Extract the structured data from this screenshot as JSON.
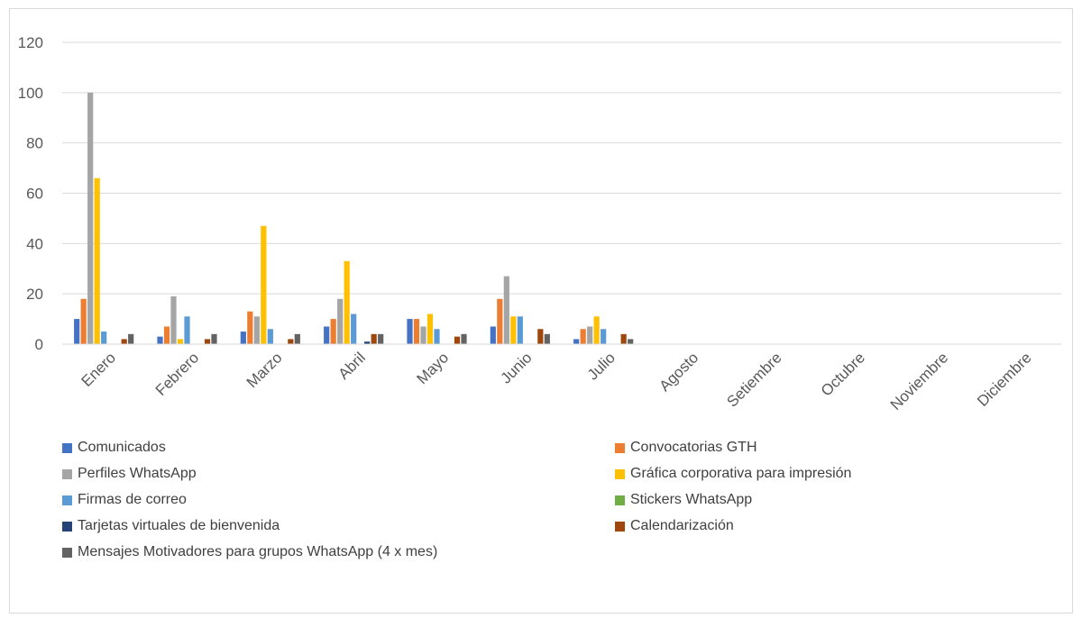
{
  "chart_data": {
    "type": "bar",
    "title": "",
    "xlabel": "",
    "ylabel": "",
    "ylim": [
      0,
      120
    ],
    "yticks": [
      0,
      20,
      40,
      60,
      80,
      100,
      120
    ],
    "grid": true,
    "legend_position": "bottom",
    "categories": [
      "Enero",
      "Febrero",
      "Marzo",
      "Abril",
      "Mayo",
      "Junio",
      "Julio",
      "Agosto",
      "Setiembre",
      "Octubre",
      "Noviembre",
      "Diciembre"
    ],
    "series": [
      {
        "name": "Comunicados",
        "color": "#4472C4",
        "values": [
          10,
          3,
          5,
          7,
          10,
          7,
          2,
          0,
          0,
          0,
          0,
          0
        ]
      },
      {
        "name": "Convocatorias GTH",
        "color": "#ED7D31",
        "values": [
          18,
          7,
          13,
          10,
          10,
          18,
          6,
          0,
          0,
          0,
          0,
          0
        ]
      },
      {
        "name": "Perfiles WhatsApp",
        "color": "#A5A5A5",
        "values": [
          100,
          19,
          11,
          18,
          7,
          27,
          7,
          0,
          0,
          0,
          0,
          0
        ]
      },
      {
        "name": "Gráfica corporativa para impresión",
        "color": "#FFC000",
        "values": [
          66,
          2,
          47,
          33,
          12,
          11,
          11,
          0,
          0,
          0,
          0,
          0
        ]
      },
      {
        "name": "Firmas de correo",
        "color": "#5B9BD5",
        "values": [
          5,
          11,
          6,
          12,
          6,
          11,
          6,
          0,
          0,
          0,
          0,
          0
        ]
      },
      {
        "name": "Stickers WhatsApp",
        "color": "#70AD47",
        "values": [
          0,
          0,
          0,
          0,
          0,
          0,
          0,
          0,
          0,
          0,
          0,
          0
        ]
      },
      {
        "name": "Tarjetas virtuales de bienvenida",
        "color": "#264478",
        "values": [
          0,
          0,
          0,
          1,
          0,
          0,
          0,
          0,
          0,
          0,
          0,
          0
        ]
      },
      {
        "name": "Calendarización",
        "color": "#9E480E",
        "values": [
          2,
          2,
          2,
          4,
          3,
          6,
          4,
          0,
          0,
          0,
          0,
          0
        ]
      },
      {
        "name": "Mensajes Motivadores para grupos WhatsApp (4 x mes)",
        "color": "#636363",
        "values": [
          4,
          4,
          4,
          4,
          4,
          4,
          2,
          0,
          0,
          0,
          0,
          0
        ]
      }
    ]
  }
}
